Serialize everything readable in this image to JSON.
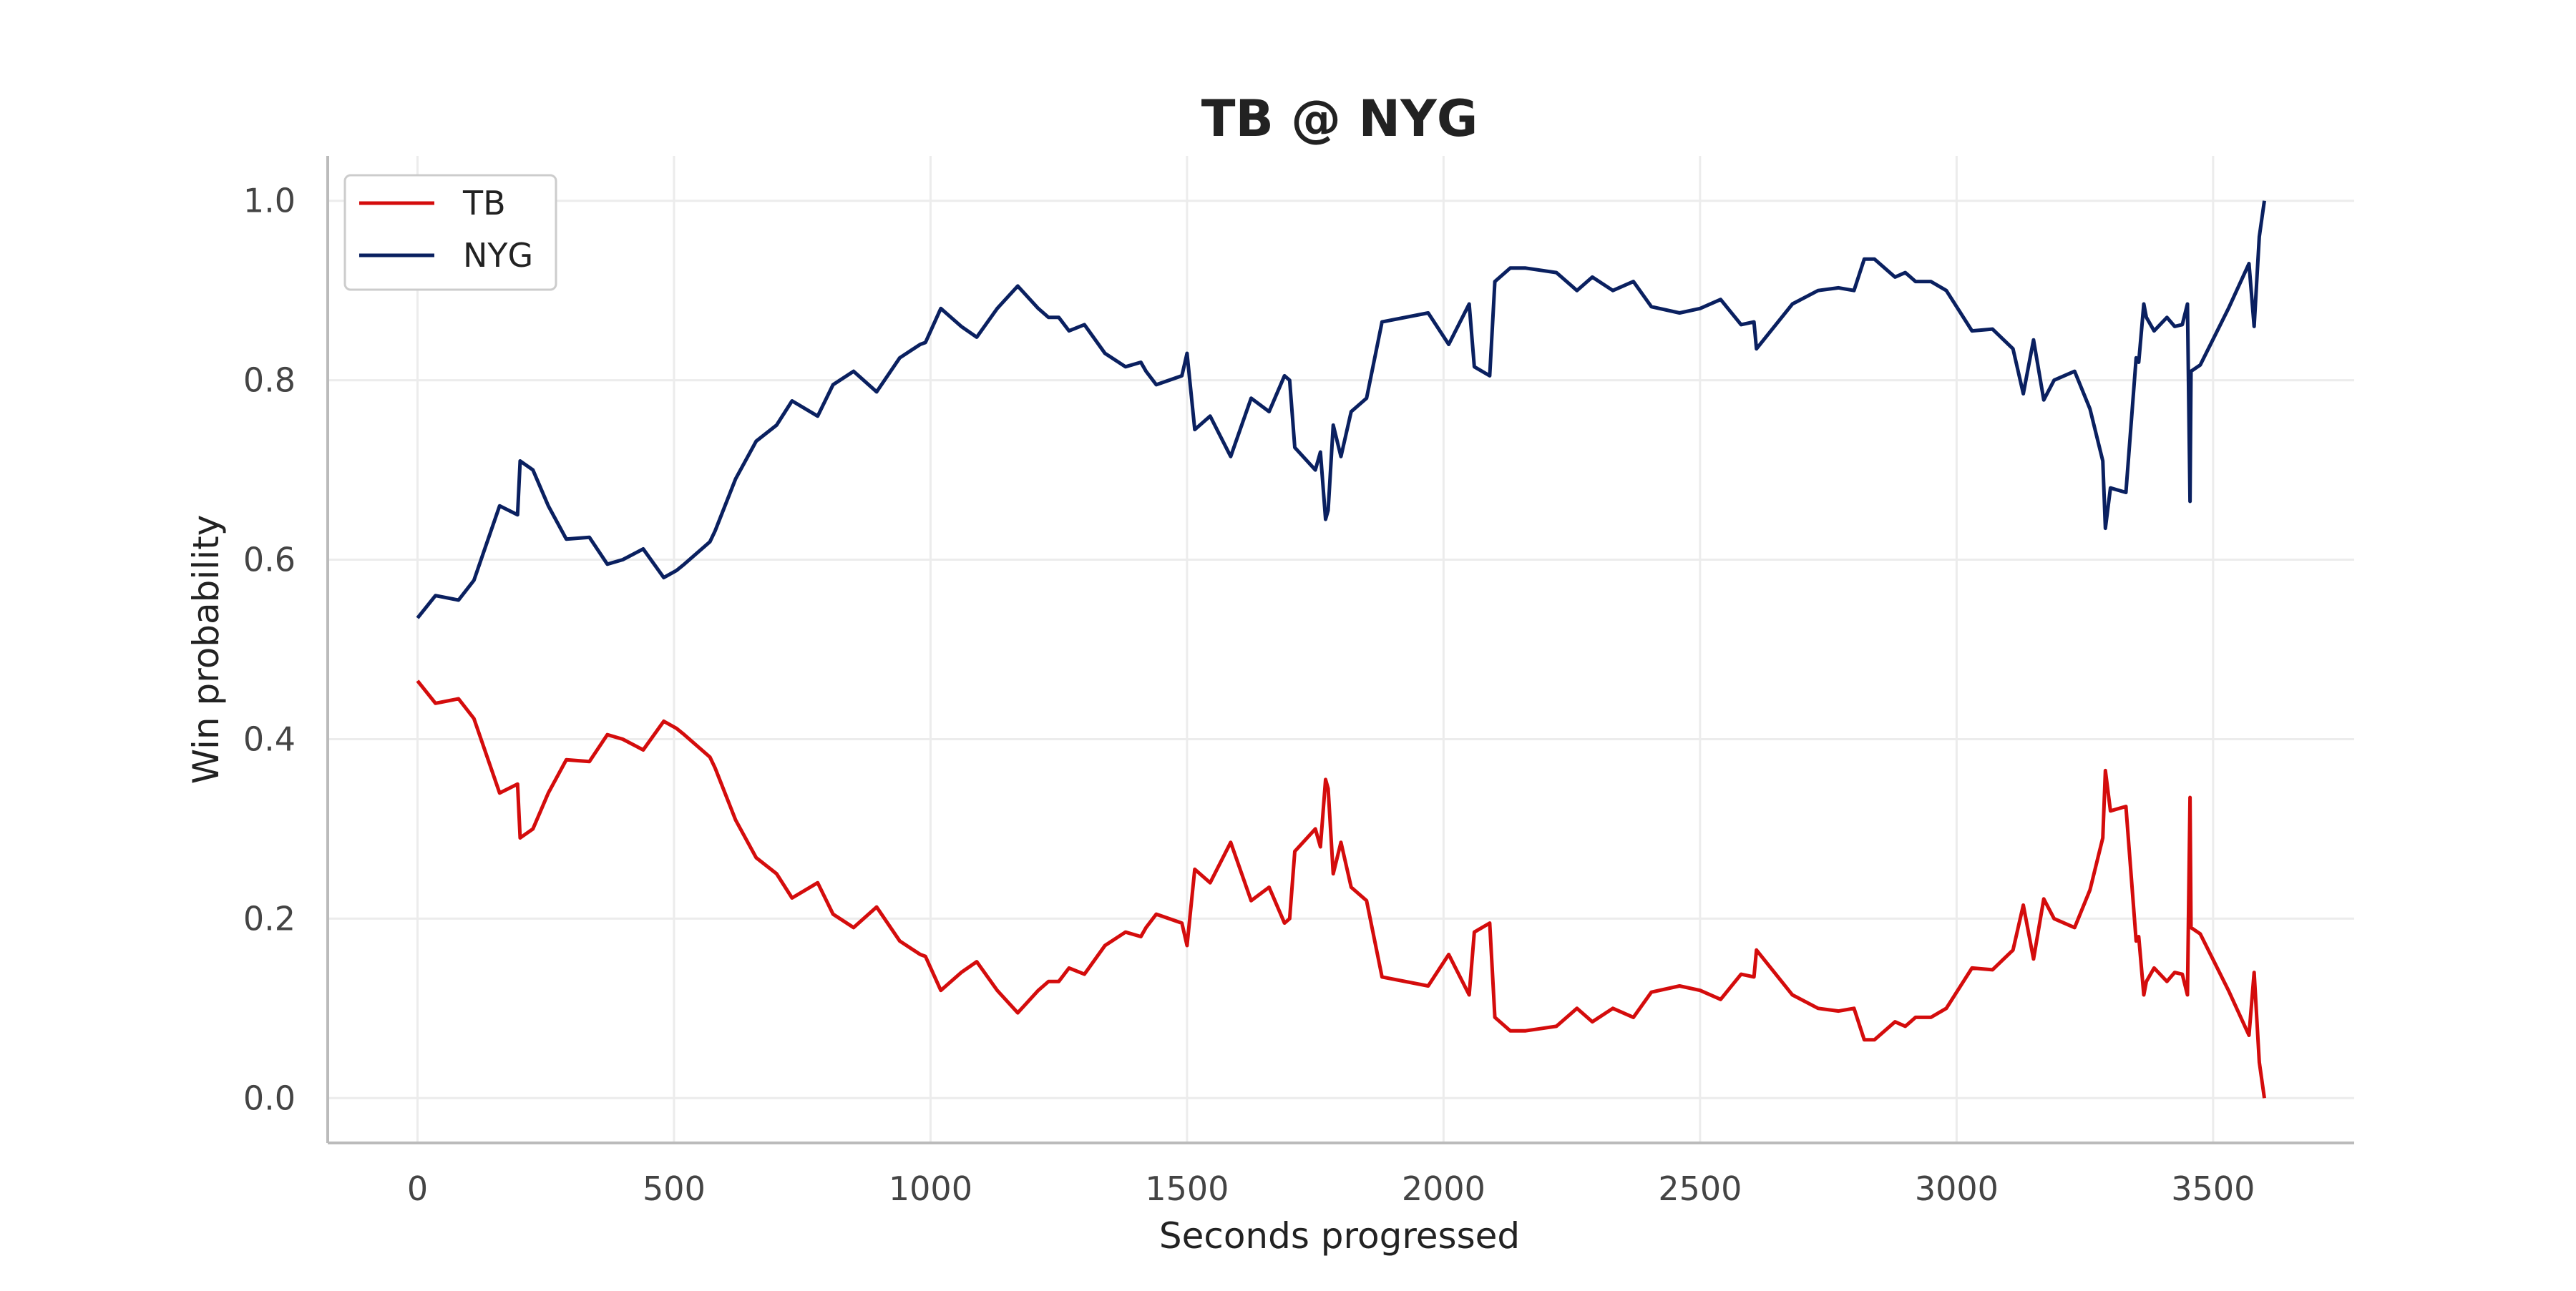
{
  "chart_data": {
    "type": "line",
    "title": "TB @ NYG",
    "xlabel": "Seconds progressed",
    "ylabel": "Win probability",
    "xlim": [
      -175,
      3775
    ],
    "ylim": [
      -0.05,
      1.05
    ],
    "xticks": [
      0,
      500,
      1000,
      1500,
      2000,
      2500,
      3000,
      3500
    ],
    "yticks": [
      0.0,
      0.2,
      0.4,
      0.6,
      0.8,
      1.0
    ],
    "xtick_labels": [
      "0",
      "500",
      "1000",
      "1500",
      "2000",
      "2500",
      "3000",
      "3500"
    ],
    "ytick_labels": [
      "0.0",
      "0.2",
      "0.4",
      "0.6",
      "0.8",
      "1.0"
    ],
    "grid": true,
    "legend_position": "top-left",
    "series": [
      {
        "name": "TB",
        "color": "#d40c0c",
        "x": [
          0,
          35,
          80,
          110,
          160,
          195,
          200,
          225,
          255,
          290,
          335,
          370,
          400,
          440,
          480,
          505,
          520,
          570,
          580,
          620,
          660,
          700,
          730,
          780,
          810,
          850,
          895,
          940,
          980,
          990,
          1020,
          1060,
          1090,
          1130,
          1170,
          1210,
          1230,
          1250,
          1270,
          1300,
          1340,
          1380,
          1410,
          1420,
          1440,
          1490,
          1500,
          1515,
          1545,
          1585,
          1625,
          1660,
          1690,
          1700,
          1710,
          1750,
          1760,
          1770,
          1775,
          1785,
          1800,
          1820,
          1850,
          1880,
          1970,
          2010,
          2050,
          2060,
          2090,
          2100,
          2130,
          2160,
          2220,
          2250,
          2260,
          2290,
          2330,
          2370,
          2405,
          2460,
          2500,
          2540,
          2580,
          2605,
          2610,
          2680,
          2730,
          2770,
          2800,
          2820,
          2840,
          2880,
          2900,
          2920,
          2950,
          2980,
          3000,
          3030,
          3070,
          3110,
          3130,
          3150,
          3170,
          3190,
          3230,
          3260,
          3285,
          3290,
          3300,
          3330,
          3350,
          3355,
          3365,
          3370,
          3385,
          3410,
          3425,
          3440,
          3450,
          3455,
          3457,
          3475,
          3530,
          3570,
          3580,
          3590,
          3600
        ],
        "y": [
          0.465,
          0.44,
          0.445,
          0.423,
          0.34,
          0.35,
          0.29,
          0.3,
          0.34,
          0.377,
          0.375,
          0.405,
          0.4,
          0.388,
          0.42,
          0.412,
          0.405,
          0.38,
          0.368,
          0.31,
          0.268,
          0.25,
          0.223,
          0.24,
          0.205,
          0.19,
          0.213,
          0.175,
          0.16,
          0.158,
          0.12,
          0.14,
          0.152,
          0.12,
          0.095,
          0.12,
          0.13,
          0.13,
          0.145,
          0.138,
          0.17,
          0.185,
          0.18,
          0.19,
          0.205,
          0.195,
          0.17,
          0.255,
          0.24,
          0.285,
          0.22,
          0.235,
          0.195,
          0.2,
          0.275,
          0.3,
          0.28,
          0.355,
          0.345,
          0.25,
          0.285,
          0.235,
          0.22,
          0.135,
          0.125,
          0.16,
          0.115,
          0.185,
          0.195,
          0.09,
          0.075,
          0.075,
          0.08,
          0.095,
          0.1,
          0.085,
          0.1,
          0.09,
          0.118,
          0.125,
          0.12,
          0.11,
          0.138,
          0.135,
          0.165,
          0.115,
          0.1,
          0.097,
          0.1,
          0.065,
          0.065,
          0.085,
          0.08,
          0.09,
          0.09,
          0.1,
          0.118,
          0.145,
          0.143,
          0.165,
          0.215,
          0.155,
          0.222,
          0.2,
          0.19,
          0.232,
          0.29,
          0.365,
          0.32,
          0.325,
          0.175,
          0.18,
          0.115,
          0.13,
          0.145,
          0.13,
          0.14,
          0.138,
          0.115,
          0.335,
          0.19,
          0.183,
          0.12,
          0.07,
          0.14,
          0.04,
          0.0
        ]
      },
      {
        "name": "NYG",
        "color": "#0a2060",
        "x": [
          0,
          35,
          80,
          110,
          160,
          195,
          200,
          225,
          255,
          290,
          335,
          370,
          400,
          440,
          480,
          505,
          520,
          570,
          580,
          620,
          660,
          700,
          730,
          780,
          810,
          850,
          895,
          940,
          980,
          990,
          1020,
          1060,
          1090,
          1130,
          1170,
          1210,
          1230,
          1250,
          1270,
          1300,
          1340,
          1380,
          1410,
          1420,
          1440,
          1490,
          1500,
          1515,
          1545,
          1585,
          1625,
          1660,
          1690,
          1700,
          1710,
          1750,
          1760,
          1770,
          1775,
          1785,
          1800,
          1820,
          1850,
          1880,
          1970,
          2010,
          2050,
          2060,
          2090,
          2100,
          2130,
          2160,
          2220,
          2250,
          2260,
          2290,
          2330,
          2370,
          2405,
          2460,
          2500,
          2540,
          2580,
          2605,
          2610,
          2680,
          2730,
          2770,
          2800,
          2820,
          2840,
          2880,
          2900,
          2920,
          2950,
          2980,
          3000,
          3030,
          3070,
          3110,
          3130,
          3150,
          3170,
          3190,
          3230,
          3260,
          3285,
          3290,
          3300,
          3330,
          3350,
          3355,
          3365,
          3370,
          3385,
          3410,
          3425,
          3440,
          3450,
          3455,
          3457,
          3475,
          3530,
          3570,
          3580,
          3590,
          3600
        ],
        "y": [
          0.535,
          0.56,
          0.555,
          0.577,
          0.66,
          0.65,
          0.71,
          0.7,
          0.66,
          0.623,
          0.625,
          0.595,
          0.6,
          0.612,
          0.58,
          0.588,
          0.595,
          0.62,
          0.632,
          0.69,
          0.732,
          0.75,
          0.777,
          0.76,
          0.795,
          0.81,
          0.787,
          0.825,
          0.84,
          0.842,
          0.88,
          0.86,
          0.848,
          0.88,
          0.905,
          0.88,
          0.87,
          0.87,
          0.855,
          0.862,
          0.83,
          0.815,
          0.82,
          0.81,
          0.795,
          0.805,
          0.83,
          0.745,
          0.76,
          0.715,
          0.78,
          0.765,
          0.805,
          0.8,
          0.725,
          0.7,
          0.72,
          0.645,
          0.655,
          0.75,
          0.715,
          0.765,
          0.78,
          0.865,
          0.875,
          0.84,
          0.885,
          0.815,
          0.805,
          0.91,
          0.925,
          0.925,
          0.92,
          0.905,
          0.9,
          0.915,
          0.9,
          0.91,
          0.882,
          0.875,
          0.88,
          0.89,
          0.862,
          0.865,
          0.835,
          0.885,
          0.9,
          0.903,
          0.9,
          0.935,
          0.935,
          0.915,
          0.92,
          0.91,
          0.91,
          0.9,
          0.882,
          0.855,
          0.857,
          0.835,
          0.785,
          0.845,
          0.778,
          0.8,
          0.81,
          0.768,
          0.71,
          0.635,
          0.68,
          0.675,
          0.825,
          0.82,
          0.885,
          0.87,
          0.855,
          0.87,
          0.86,
          0.862,
          0.885,
          0.665,
          0.81,
          0.817,
          0.88,
          0.93,
          0.86,
          0.96,
          1.0
        ]
      }
    ]
  }
}
